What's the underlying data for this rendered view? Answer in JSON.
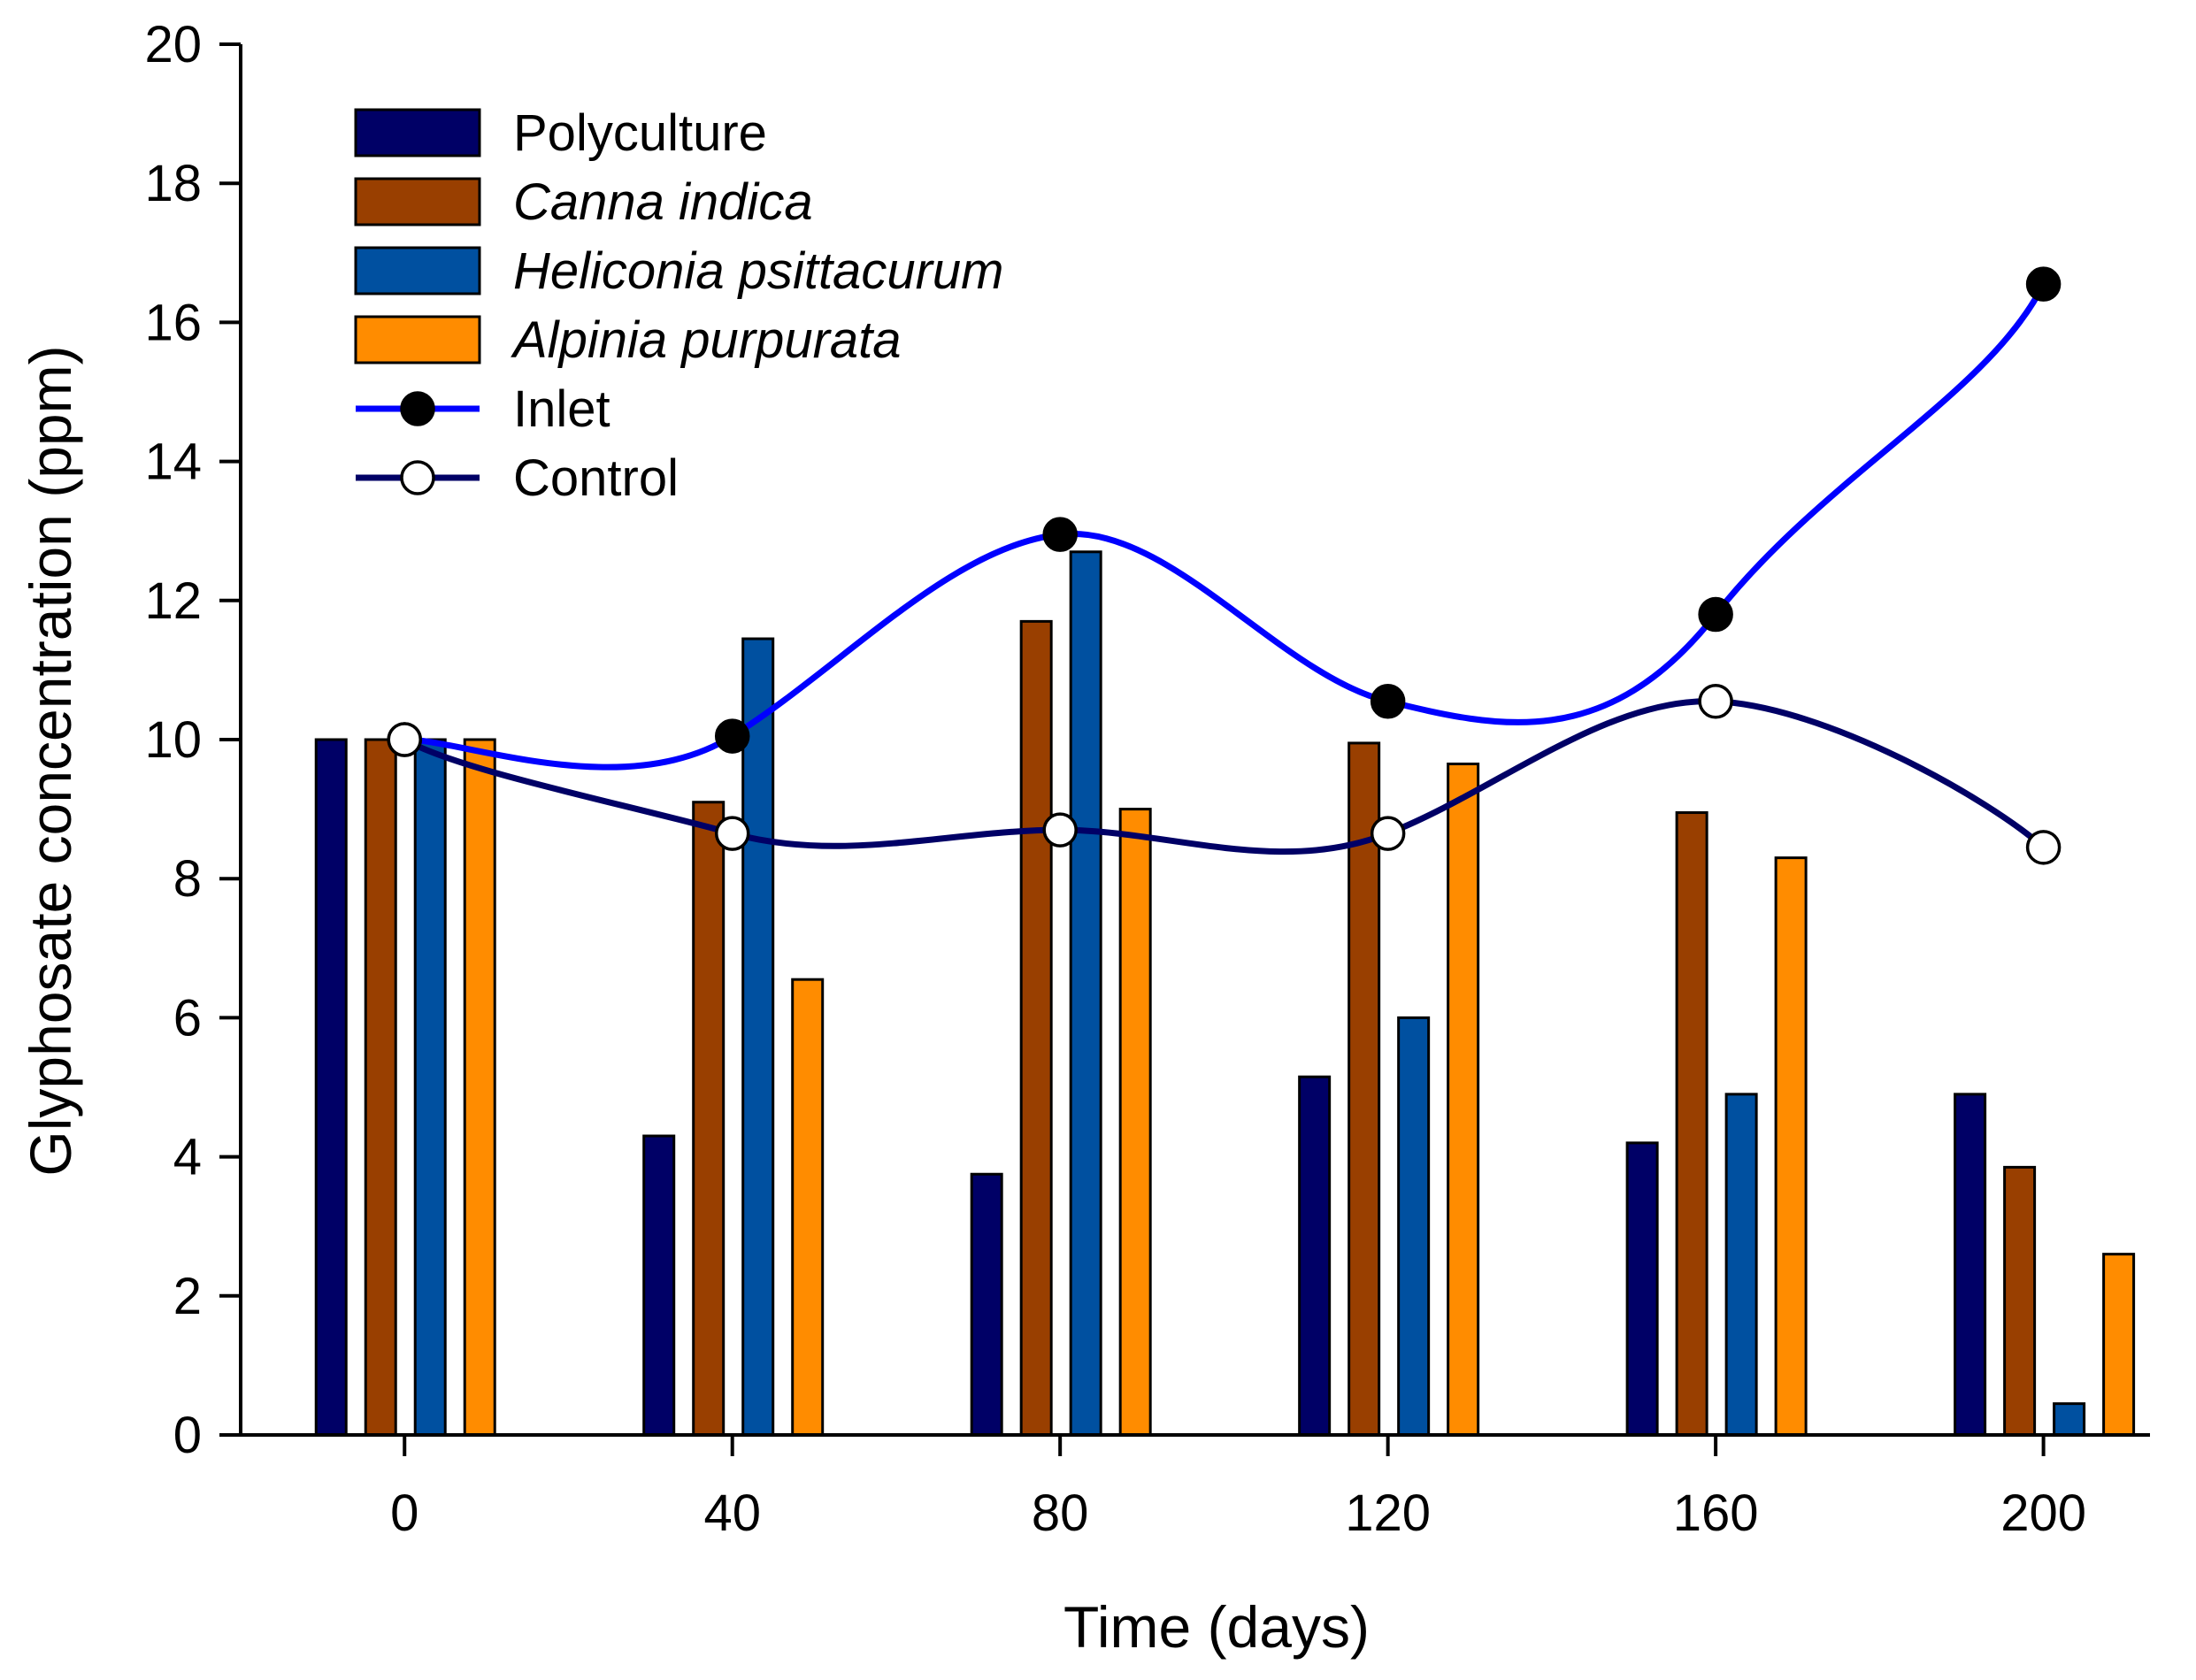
{
  "chart_data": {
    "type": "bar+line",
    "title": "",
    "xlabel": "Time (days)",
    "ylabel": "Glyphosate concentration (ppm)",
    "x_ticks": [
      0,
      40,
      80,
      120,
      160,
      200
    ],
    "x_tick_labels": [
      "0",
      "40",
      "80",
      "120",
      "160",
      "200"
    ],
    "y_ticks": [
      0,
      2,
      4,
      6,
      8,
      10,
      12,
      14,
      16,
      18,
      20
    ],
    "y_tick_labels": [
      "0",
      "2",
      "4",
      "6",
      "8",
      "10",
      "12",
      "14",
      "16",
      "18",
      "20"
    ],
    "xlim": [
      -20,
      213
    ],
    "ylim": [
      0,
      20
    ],
    "grid": false,
    "legend_position": "top-left",
    "categories": [
      0,
      40,
      80,
      120,
      160,
      200
    ],
    "bar_series": [
      {
        "name": "Polyculture",
        "italic": false,
        "color": "#000066",
        "values": [
          10.0,
          4.3,
          3.75,
          5.15,
          4.2,
          4.9
        ]
      },
      {
        "name": "Canna indica",
        "italic": true,
        "color": "#993F00",
        "values": [
          10.0,
          9.1,
          11.7,
          9.95,
          8.95,
          3.85
        ]
      },
      {
        "name": "Heliconia psittacurum",
        "italic": true,
        "color": "#0050A0",
        "values": [
          10.0,
          11.45,
          12.7,
          6.0,
          4.9,
          0.45
        ]
      },
      {
        "name": "Alpinia purpurata",
        "italic": true,
        "color": "#FF8C00",
        "values": [
          10.0,
          6.55,
          9.0,
          9.65,
          8.3,
          2.6
        ]
      }
    ],
    "line_series": [
      {
        "name": "Inlet",
        "color": "#0000FF",
        "marker": "filled-circle",
        "x": [
          0,
          40,
          80,
          120,
          160,
          200
        ],
        "y": [
          10.0,
          10.05,
          12.95,
          10.55,
          11.8,
          16.55
        ]
      },
      {
        "name": "Control",
        "color": "#000066",
        "marker": "open-circle",
        "x": [
          0,
          40,
          80,
          120,
          160,
          200
        ],
        "y": [
          10.0,
          8.65,
          8.7,
          8.65,
          10.55,
          8.45
        ]
      }
    ]
  }
}
